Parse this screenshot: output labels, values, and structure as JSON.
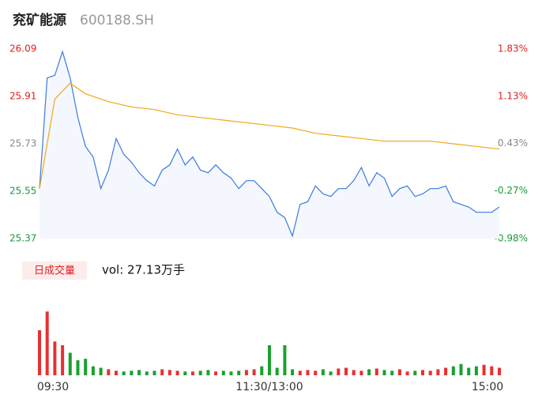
{
  "chart_data": {
    "type": "intraday",
    "title": "兖矿能源",
    "subtitle": "600188.SH",
    "legend_label": "日成交量",
    "volume_label": "vol: 27.13万手",
    "xlim": [
      0,
      240
    ],
    "xticks": [
      {
        "value": 0,
        "label": "09:30"
      },
      {
        "value": 120,
        "label": "11:30/13:00"
      },
      {
        "value": 240,
        "label": "15:00"
      }
    ],
    "ylim": [
      25.37,
      26.09
    ],
    "yticks": [
      26.09,
      25.91,
      25.73,
      25.55,
      25.37
    ],
    "y2lim": [
      -0.98,
      1.83
    ],
    "y2ticks": [
      {
        "value": 1.83,
        "label": "1.83%"
      },
      {
        "value": 1.13,
        "label": "1.13%"
      },
      {
        "value": 0.43,
        "label": "0.43%"
      },
      {
        "value": -0.27,
        "label": "-0.27%"
      },
      {
        "value": -0.98,
        "label": "-0.98%"
      }
    ],
    "tick_colors": [
      "#e02020",
      "#e02020",
      "#888888",
      "#1a9a3a",
      "#1a9a3a"
    ],
    "series": [
      {
        "name": "price",
        "color": "#3a7be0",
        "x": [
          0,
          4,
          8,
          12,
          16,
          20,
          24,
          28,
          32,
          36,
          40,
          44,
          48,
          52,
          56,
          60,
          64,
          68,
          72,
          76,
          80,
          84,
          88,
          92,
          96,
          100,
          104,
          108,
          112,
          116,
          120,
          124,
          128,
          132,
          136,
          140,
          144,
          148,
          152,
          156,
          160,
          164,
          168,
          172,
          176,
          180,
          184,
          188,
          192,
          196,
          200,
          204,
          208,
          212,
          216,
          220,
          224,
          228,
          232,
          236,
          240
        ],
        "values": [
          25.56,
          25.98,
          25.99,
          26.08,
          25.98,
          25.83,
          25.72,
          25.68,
          25.56,
          25.63,
          25.75,
          25.69,
          25.66,
          25.62,
          25.59,
          25.57,
          25.63,
          25.65,
          25.71,
          25.65,
          25.68,
          25.63,
          25.62,
          25.65,
          25.62,
          25.6,
          25.56,
          25.59,
          25.59,
          25.56,
          25.53,
          25.47,
          25.45,
          25.38,
          25.5,
          25.51,
          25.57,
          25.54,
          25.53,
          25.56,
          25.56,
          25.59,
          25.64,
          25.57,
          25.62,
          25.6,
          25.53,
          25.56,
          25.57,
          25.53,
          25.54,
          25.56,
          25.56,
          25.57,
          25.51,
          25.5,
          25.49,
          25.47,
          25.47,
          25.47,
          25.49
        ]
      },
      {
        "name": "average",
        "color": "#f0a818",
        "x": [
          0,
          8,
          16,
          24,
          36,
          48,
          60,
          72,
          84,
          96,
          108,
          120,
          132,
          144,
          156,
          168,
          180,
          192,
          204,
          216,
          228,
          240
        ],
        "values": [
          25.56,
          25.9,
          25.96,
          25.92,
          25.89,
          25.87,
          25.86,
          25.84,
          25.83,
          25.82,
          25.81,
          25.8,
          25.79,
          25.77,
          25.76,
          25.75,
          25.74,
          25.74,
          25.74,
          25.73,
          25.72,
          25.71
        ]
      }
    ],
    "volume": {
      "ylim": [
        0,
        100
      ],
      "up_color": "#e83030",
      "down_color": "#1aa030",
      "values": [
        60,
        85,
        45,
        40,
        30,
        20,
        22,
        12,
        10,
        8,
        6,
        5,
        6,
        7,
        5,
        6,
        8,
        7,
        6,
        5,
        5,
        6,
        7,
        5,
        6,
        5,
        6,
        7,
        8,
        12,
        40,
        10,
        40,
        8,
        6,
        7,
        6,
        8,
        5,
        9,
        10,
        7,
        6,
        8,
        9,
        7,
        6,
        8,
        5,
        6,
        7,
        6,
        8,
        10,
        12,
        15,
        10,
        12,
        14,
        12,
        10
      ]
    }
  }
}
